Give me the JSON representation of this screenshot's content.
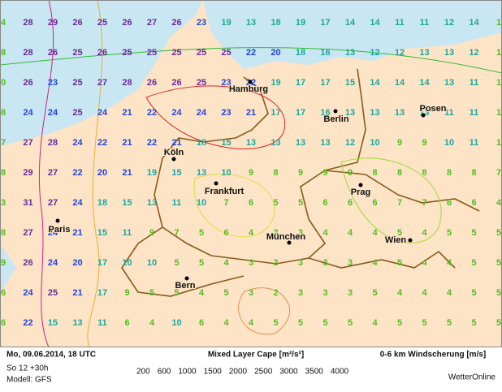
{
  "header": {
    "datetime": "Mo, 09.06.2014, 18 UTC",
    "run": "So 12 +30h",
    "model": "Modell: GFS",
    "cape_title": "Mixed Layer Cape [m²/s²]",
    "shear_title": "0-6 km Windscherung [m/s]",
    "brand": "WetterOnline"
  },
  "cape_legend": [
    {
      "value": 200,
      "color": "#33bb33"
    },
    {
      "value": 600,
      "color": "#99dd33"
    },
    {
      "value": 1000,
      "color": "#dddd44"
    },
    {
      "value": 1500,
      "color": "#e8b030"
    },
    {
      "value": 2000,
      "color": "#e89050"
    },
    {
      "value": 2500,
      "color": "#dd2222"
    },
    {
      "value": 3000,
      "color": "#cc2288"
    },
    {
      "value": 3500,
      "color": "#9922bb"
    },
    {
      "value": 4000,
      "color": "#7711aa"
    }
  ],
  "wind_colors": [
    {
      "min": 0,
      "color": "#55bb22"
    },
    {
      "min": 10,
      "color": "#1ca7a0"
    },
    {
      "min": 20,
      "color": "#2244dd"
    },
    {
      "min": 25,
      "color": "#6a2a9a"
    }
  ],
  "cities": [
    "Hamburg",
    "Berlin",
    "Posen",
    "Köln",
    "Frankfurt",
    "Prag",
    "Paris",
    "München",
    "Wien",
    "Bern"
  ],
  "wind_grid": [
    [
      4,
      28,
      29,
      26,
      25,
      26,
      27,
      26,
      23,
      19,
      13,
      18,
      19,
      17,
      14,
      14,
      11,
      11,
      12,
      14,
      1
    ],
    [
      8,
      28,
      26,
      25,
      26,
      25,
      25,
      25,
      25,
      25,
      22,
      20,
      18,
      16,
      13,
      12,
      12,
      13,
      13,
      12,
      1
    ],
    [
      0,
      26,
      23,
      25,
      27,
      28,
      26,
      26,
      25,
      23,
      22,
      19,
      17,
      17,
      15,
      14,
      14,
      14,
      13,
      11,
      1
    ],
    [
      8,
      24,
      24,
      25,
      24,
      21,
      22,
      24,
      24,
      23,
      21,
      17,
      17,
      16,
      13,
      13,
      13,
      13,
      11,
      11,
      1
    ],
    [
      7,
      27,
      28,
      24,
      22,
      21,
      22,
      21,
      18,
      15,
      13,
      13,
      13,
      13,
      12,
      10,
      9,
      9,
      10,
      11,
      1
    ],
    [
      8,
      29,
      27,
      22,
      20,
      21,
      19,
      15,
      13,
      10,
      9,
      8,
      9,
      9,
      9,
      8,
      8,
      8,
      8,
      8,
      7
    ],
    [
      3,
      31,
      27,
      24,
      18,
      15,
      13,
      11,
      10,
      7,
      6,
      5,
      5,
      6,
      6,
      6,
      7,
      7,
      6,
      6,
      4
    ],
    [
      8,
      27,
      24,
      21,
      15,
      11,
      9,
      7,
      5,
      6,
      4,
      3,
      3,
      4,
      4,
      4,
      5,
      4,
      5,
      5,
      5
    ],
    [
      9,
      26,
      24,
      20,
      17,
      10,
      10,
      5,
      5,
      4,
      3,
      3,
      3,
      3,
      3,
      4,
      5,
      4,
      4,
      5,
      5
    ],
    [
      6,
      24,
      25,
      21,
      17,
      9,
      5,
      5,
      4,
      5,
      3,
      2,
      3,
      3,
      3,
      5,
      4,
      4,
      4,
      5,
      5
    ],
    [
      6,
      22,
      15,
      13,
      11,
      6,
      4,
      10,
      6,
      4,
      4,
      5,
      5,
      5,
      5,
      4,
      5,
      5,
      5,
      5,
      5
    ]
  ]
}
